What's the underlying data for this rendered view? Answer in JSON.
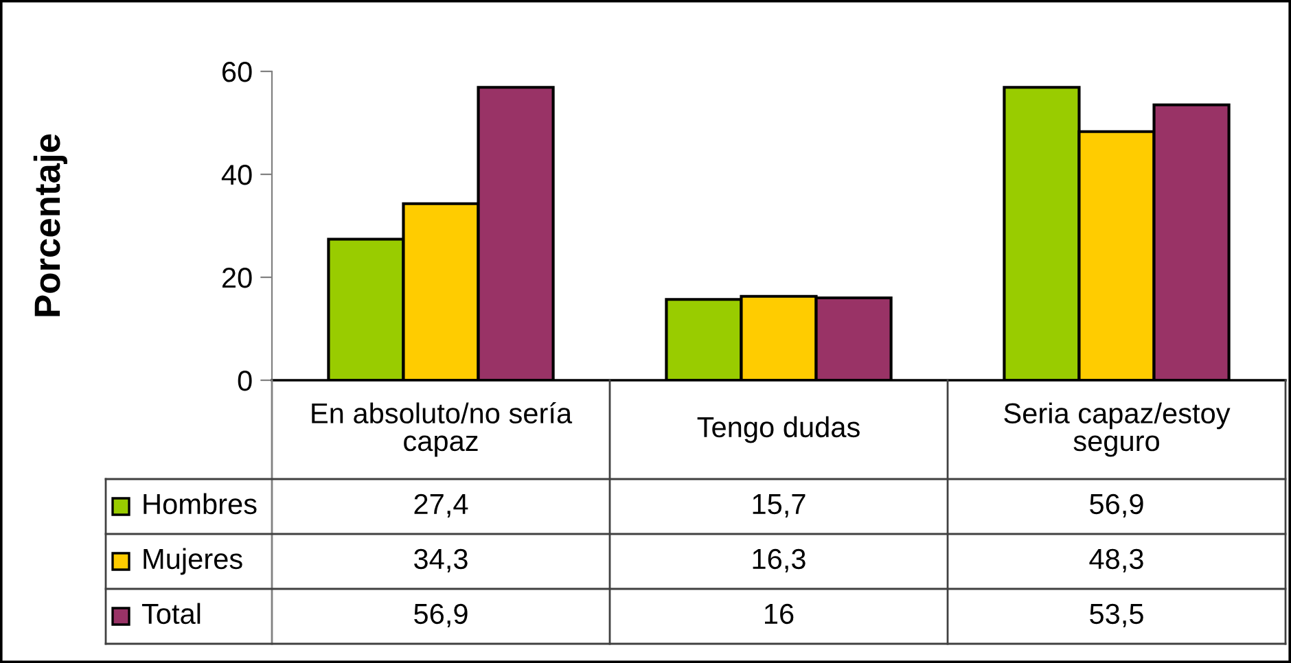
{
  "chart_data": {
    "type": "bar",
    "ylabel": "Porcentaje",
    "categories": [
      "En absoluto/no sería\ncapaz",
      "Tengo dudas",
      "Seria capaz/estoy\nseguro"
    ],
    "series": [
      {
        "name": "Hombres",
        "color": "#99cc00",
        "values": [
          27.4,
          15.7,
          56.9
        ],
        "value_labels": [
          "27,4",
          "15,7",
          "56,9"
        ]
      },
      {
        "name": "Mujeres",
        "color": "#ffcc00",
        "values": [
          34.3,
          16.3,
          48.3
        ],
        "value_labels": [
          "34,3",
          "16,3",
          "48,3"
        ]
      },
      {
        "name": "Total",
        "color": "#993366",
        "values": [
          56.9,
          16,
          53.5
        ],
        "value_labels": [
          "56,9",
          "16",
          "53,5"
        ]
      }
    ],
    "ylim": [
      0,
      60
    ],
    "yticks": [
      0,
      20,
      40,
      60
    ],
    "legend": "bottom"
  }
}
